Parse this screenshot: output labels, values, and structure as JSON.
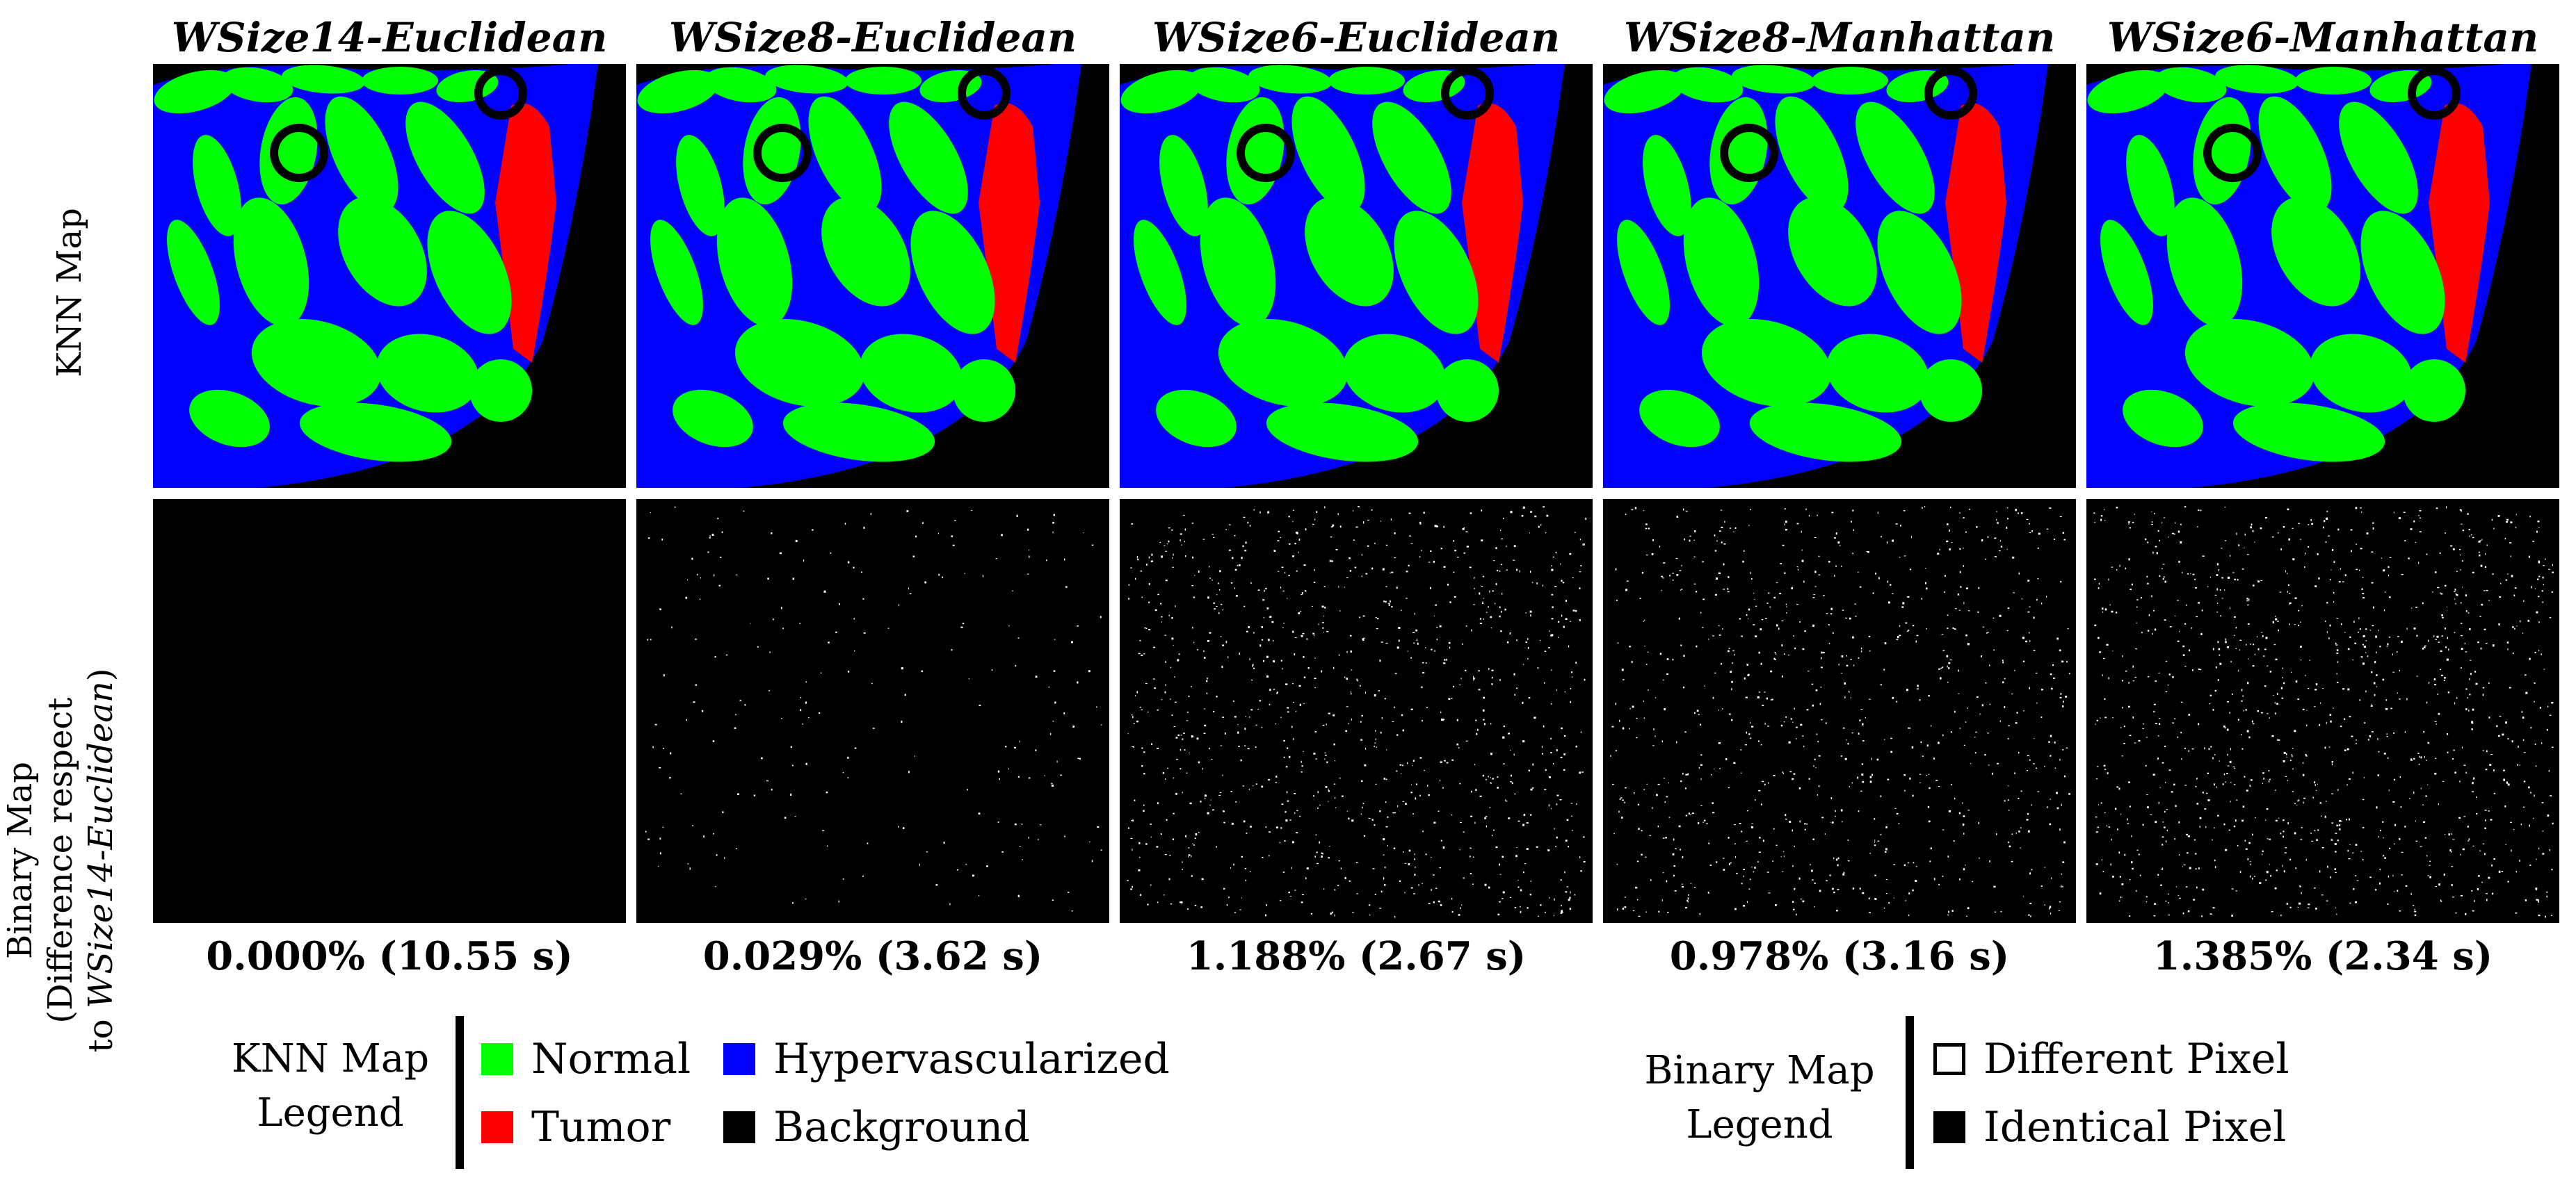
{
  "columns": [
    {
      "title": "WSize14-Euclidean",
      "caption": "0.000% (10.55 s)",
      "diff_fraction": 0.0
    },
    {
      "title": "WSize8-Euclidean",
      "caption": "0.029% (3.62 s)",
      "diff_fraction": 0.029
    },
    {
      "title": "WSize6-Euclidean",
      "caption": "1.188% (2.67 s)",
      "diff_fraction": 1.188
    },
    {
      "title": "WSize8-Manhattan",
      "caption": "0.978% (3.16 s)",
      "diff_fraction": 0.978
    },
    {
      "title": "WSize6-Manhattan",
      "caption": "1.385% (2.34 s)",
      "diff_fraction": 1.385
    }
  ],
  "rows": {
    "knn_label": "KNN Map",
    "binary_label_line1": "Binary Map",
    "binary_label_line2": "(Difference respect",
    "binary_label_line3_prefix": "to ",
    "binary_label_line3_italic": "WSize14-Euclidean",
    "binary_label_line3_suffix": ")"
  },
  "knn_legend": {
    "title_line1": "KNN Map",
    "title_line2": "Legend",
    "items": [
      {
        "label": "Normal",
        "color": "#00ff00"
      },
      {
        "label": "Tumor",
        "color": "#ff0000"
      },
      {
        "label": "Hypervascularized",
        "color": "#0000ff"
      },
      {
        "label": "Background",
        "color": "#000000"
      }
    ]
  },
  "binary_legend": {
    "title_line1": "Binary Map",
    "title_line2": "Legend",
    "items": [
      {
        "label": "Different Pixel",
        "color": "#ffffff"
      },
      {
        "label": "Identical Pixel",
        "color": "#000000"
      }
    ]
  }
}
